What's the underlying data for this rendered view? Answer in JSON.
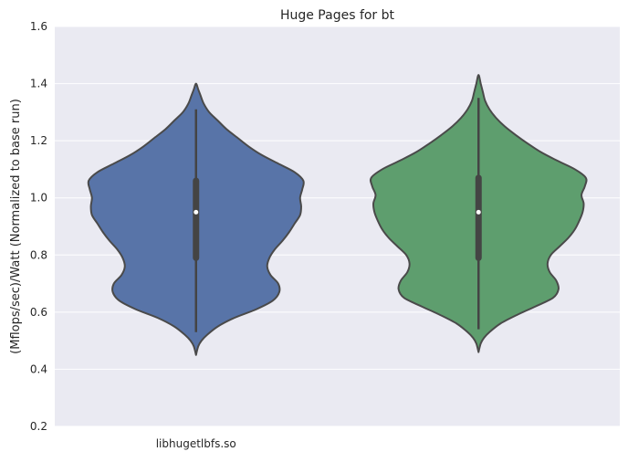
{
  "chart_data": {
    "type": "violin",
    "title": "Huge Pages for bt",
    "xlabel": "",
    "ylabel": "(Mflops/sec)/Watt (Normalized to base run)",
    "ylim": [
      0.2,
      1.6
    ],
    "yticks": [
      0.2,
      0.4,
      0.6,
      0.8,
      1.0,
      1.2,
      1.4,
      1.6
    ],
    "ytick_labels": [
      "0.2",
      "0.4",
      "0.6",
      "0.8",
      "1.0",
      "1.2",
      "1.4",
      "1.6"
    ],
    "xtick_labels": [
      "libhugetlbfs.so",
      ""
    ],
    "grid": true,
    "background": "#eaeaf2",
    "violins": [
      {
        "color": "#5874a8",
        "min": 0.53,
        "max": 1.31,
        "q1": 0.79,
        "median": 0.95,
        "q3": 1.06,
        "extent": [
          0.45,
          1.4
        ],
        "profile": [
          [
            0.45,
            0.0
          ],
          [
            0.48,
            0.02
          ],
          [
            0.5,
            0.05
          ],
          [
            0.52,
            0.1
          ],
          [
            0.55,
            0.2
          ],
          [
            0.58,
            0.35
          ],
          [
            0.61,
            0.55
          ],
          [
            0.64,
            0.7
          ],
          [
            0.67,
            0.76
          ],
          [
            0.7,
            0.75
          ],
          [
            0.73,
            0.68
          ],
          [
            0.76,
            0.65
          ],
          [
            0.79,
            0.67
          ],
          [
            0.82,
            0.72
          ],
          [
            0.85,
            0.79
          ],
          [
            0.88,
            0.85
          ],
          [
            0.91,
            0.9
          ],
          [
            0.94,
            0.95
          ],
          [
            0.97,
            0.96
          ],
          [
            1.0,
            0.95
          ],
          [
            1.03,
            0.97
          ],
          [
            1.06,
            0.98
          ],
          [
            1.09,
            0.9
          ],
          [
            1.12,
            0.75
          ],
          [
            1.15,
            0.6
          ],
          [
            1.18,
            0.48
          ],
          [
            1.21,
            0.38
          ],
          [
            1.24,
            0.28
          ],
          [
            1.27,
            0.2
          ],
          [
            1.3,
            0.12
          ],
          [
            1.33,
            0.07
          ],
          [
            1.36,
            0.04
          ],
          [
            1.38,
            0.02
          ],
          [
            1.4,
            0.0
          ]
        ]
      },
      {
        "color": "#5e9e6e",
        "min": 0.54,
        "max": 1.35,
        "q1": 0.79,
        "median": 0.95,
        "q3": 1.07,
        "extent": [
          0.46,
          1.43
        ],
        "profile": [
          [
            0.46,
            0.0
          ],
          [
            0.49,
            0.02
          ],
          [
            0.51,
            0.05
          ],
          [
            0.53,
            0.1
          ],
          [
            0.56,
            0.2
          ],
          [
            0.59,
            0.35
          ],
          [
            0.62,
            0.52
          ],
          [
            0.65,
            0.68
          ],
          [
            0.68,
            0.73
          ],
          [
            0.71,
            0.71
          ],
          [
            0.74,
            0.65
          ],
          [
            0.77,
            0.63
          ],
          [
            0.8,
            0.66
          ],
          [
            0.83,
            0.74
          ],
          [
            0.86,
            0.82
          ],
          [
            0.89,
            0.88
          ],
          [
            0.92,
            0.92
          ],
          [
            0.95,
            0.95
          ],
          [
            0.98,
            0.96
          ],
          [
            1.01,
            0.94
          ],
          [
            1.04,
            0.97
          ],
          [
            1.07,
            0.98
          ],
          [
            1.1,
            0.88
          ],
          [
            1.13,
            0.72
          ],
          [
            1.16,
            0.57
          ],
          [
            1.19,
            0.45
          ],
          [
            1.22,
            0.34
          ],
          [
            1.25,
            0.24
          ],
          [
            1.28,
            0.16
          ],
          [
            1.31,
            0.1
          ],
          [
            1.34,
            0.06
          ],
          [
            1.37,
            0.04
          ],
          [
            1.4,
            0.02
          ],
          [
            1.43,
            0.0
          ]
        ]
      }
    ]
  }
}
